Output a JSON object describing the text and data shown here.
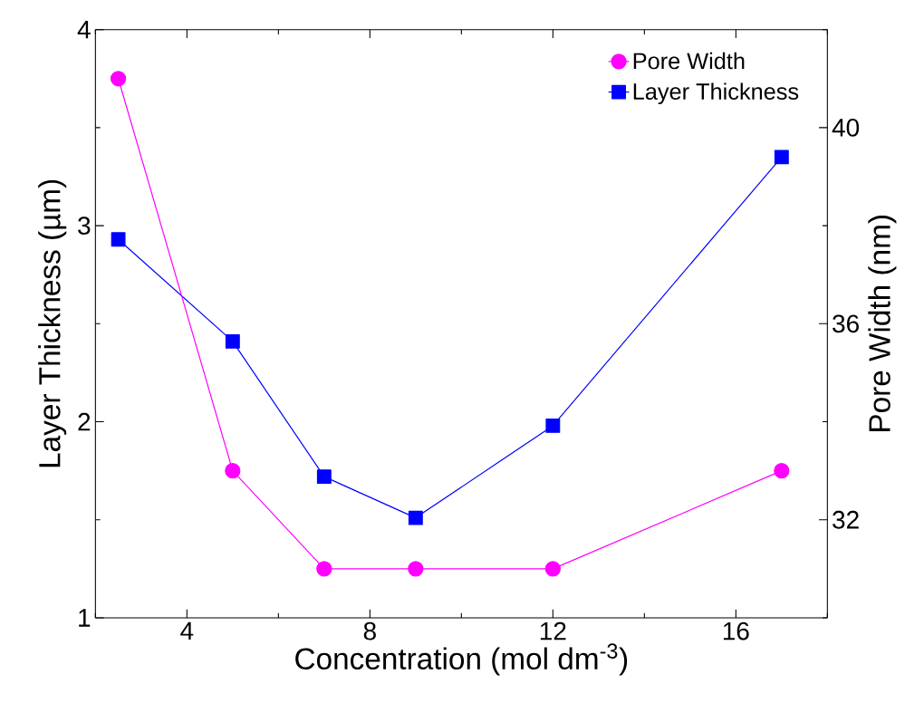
{
  "chart_data": {
    "type": "line",
    "xlabel": "Concentration (mol dm$^{-3}$)",
    "ylabel": "Layer Thickness (µm)",
    "y2label": "Pore Width (nm)",
    "x": [
      2.5,
      5,
      7,
      9,
      12,
      17
    ],
    "series": [
      {
        "name": "Pore Width",
        "color": "#ff00ff",
        "values": [
          41,
          33,
          31,
          31,
          31,
          33
        ],
        "axis": "y2",
        "marker": "circle"
      },
      {
        "name": "Layer Thickness",
        "color": "#0000ff",
        "values": [
          2.93,
          2.41,
          1.72,
          1.51,
          1.98,
          3.35
        ],
        "marker": "square"
      }
    ],
    "xlim": [
      2,
      18
    ],
    "xticks": [
      {
        "value": 2,
        "label": null
      },
      4,
      {
        "value": 6,
        "label": null
      },
      8,
      {
        "value": 10,
        "label": null
      },
      12,
      {
        "value": 14,
        "label": null
      },
      16,
      {
        "value": 18,
        "label": null
      }
    ],
    "ylim": [
      1,
      4
    ],
    "yticks": [
      1,
      {
        "value": 1.5,
        "label": null
      },
      2,
      {
        "value": 2.5,
        "label": null
      },
      3,
      {
        "value": 3.5,
        "label": null
      },
      4
    ],
    "y2lim": [
      30,
      42
    ],
    "y2ticks": [
      {
        "value": 30,
        "label": null
      },
      32,
      {
        "value": 34,
        "label": null
      },
      36,
      {
        "value": 38,
        "label": null
      },
      40,
      {
        "value": 42,
        "label": null
      }
    ],
    "legend": "top right",
    "line_style": "solid"
  }
}
